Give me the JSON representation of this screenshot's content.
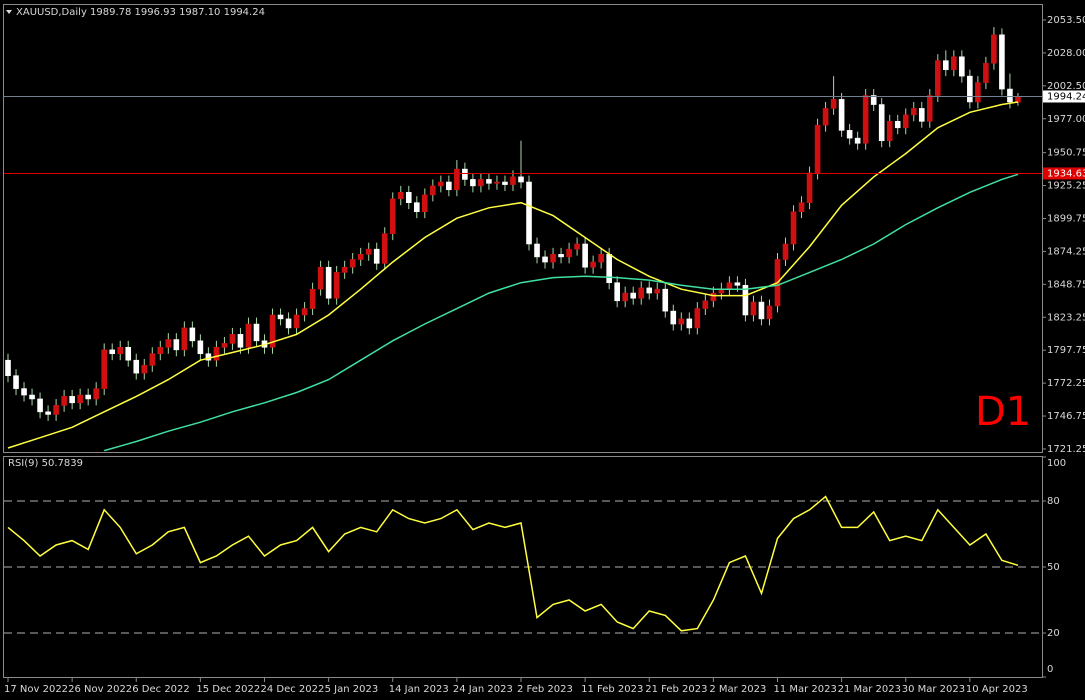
{
  "chart_data": [
    {
      "type": "candlestick",
      "title": "XAUUSD,Daily",
      "header_values": "1989.78 1996.93 1987.10 1994.24",
      "annotation": "D1",
      "open": [
        1790,
        1778,
        1768,
        1763,
        1760,
        1750,
        1748,
        1755,
        1762,
        1757,
        1763,
        1760,
        1768,
        1798,
        1795,
        1800,
        1790,
        1780,
        1786,
        1795,
        1800,
        1806,
        1798,
        1815,
        1805,
        1795,
        1790,
        1800,
        1803,
        1810,
        1800,
        1818,
        1805,
        1800,
        1825,
        1822,
        1815,
        1825,
        1830,
        1845,
        1862,
        1838,
        1858,
        1862,
        1868,
        1872,
        1876,
        1865,
        1888,
        1915,
        1920,
        1912,
        1905,
        1918,
        1925,
        1928,
        1922,
        1938,
        1930,
        1925,
        1930,
        1927,
        1928,
        1926,
        1932,
        1928,
        1880,
        1870,
        1866,
        1872,
        1870,
        1876,
        1880,
        1862,
        1866,
        1872,
        1850,
        1836,
        1842,
        1838,
        1846,
        1842,
        1845,
        1828,
        1818,
        1822,
        1815,
        1830,
        1836,
        1842,
        1845,
        1850,
        1848,
        1825,
        1835,
        1822,
        1832,
        1868,
        1880,
        1905,
        1912,
        1935,
        1972,
        1985,
        1992,
        1968,
        1962,
        1958,
        1995,
        1988,
        1960,
        1975,
        1970,
        1980,
        1985,
        1975,
        1995,
        2022,
        2015,
        2025,
        2010,
        1990,
        2005,
        2020,
        2042,
        2000,
        1989.78
      ],
      "high": [
        1795,
        1783,
        1773,
        1768,
        1765,
        1755,
        1760,
        1767,
        1767,
        1768,
        1768,
        1773,
        1803,
        1803,
        1805,
        1805,
        1795,
        1791,
        1800,
        1805,
        1811,
        1811,
        1820,
        1820,
        1810,
        1800,
        1805,
        1808,
        1815,
        1815,
        1823,
        1823,
        1810,
        1830,
        1830,
        1827,
        1830,
        1835,
        1850,
        1867,
        1867,
        1863,
        1867,
        1873,
        1877,
        1881,
        1881,
        1893,
        1920,
        1925,
        1925,
        1917,
        1923,
        1930,
        1933,
        1933,
        1945,
        1943,
        1935,
        1935,
        1935,
        1933,
        1933,
        1937,
        1960,
        1933,
        1885,
        1875,
        1877,
        1877,
        1881,
        1885,
        1885,
        1871,
        1877,
        1877,
        1855,
        1847,
        1847,
        1851,
        1851,
        1850,
        1850,
        1833,
        1827,
        1827,
        1835,
        1841,
        1847,
        1850,
        1855,
        1855,
        1853,
        1840,
        1840,
        1837,
        1873,
        1885,
        1910,
        1917,
        1940,
        1977,
        1990,
        2010,
        1997,
        1973,
        1967,
        2000,
        2000,
        1993,
        1980,
        1980,
        1985,
        1990,
        1990,
        2000,
        2027,
        2030,
        2030,
        2030,
        2015,
        2010,
        2025,
        2048,
        2047,
        2012,
        1996.93
      ],
      "low": [
        1773,
        1763,
        1758,
        1755,
        1745,
        1743,
        1743,
        1750,
        1752,
        1752,
        1755,
        1755,
        1763,
        1790,
        1790,
        1785,
        1775,
        1775,
        1781,
        1790,
        1795,
        1793,
        1793,
        1800,
        1790,
        1785,
        1785,
        1795,
        1798,
        1795,
        1795,
        1800,
        1795,
        1795,
        1817,
        1810,
        1810,
        1820,
        1825,
        1840,
        1833,
        1833,
        1853,
        1857,
        1863,
        1867,
        1860,
        1860,
        1883,
        1910,
        1907,
        1900,
        1900,
        1913,
        1920,
        1917,
        1917,
        1925,
        1920,
        1920,
        1922,
        1922,
        1921,
        1921,
        1923,
        1875,
        1865,
        1861,
        1861,
        1865,
        1865,
        1871,
        1857,
        1857,
        1861,
        1845,
        1831,
        1831,
        1833,
        1833,
        1837,
        1837,
        1823,
        1813,
        1813,
        1810,
        1810,
        1825,
        1831,
        1837,
        1840,
        1843,
        1820,
        1820,
        1817,
        1817,
        1827,
        1863,
        1875,
        1900,
        1907,
        1930,
        1967,
        1980,
        1963,
        1957,
        1953,
        1953,
        1983,
        1955,
        1955,
        1965,
        1965,
        1975,
        1970,
        1970,
        1990,
        2010,
        2010,
        2005,
        1985,
        1985,
        2000,
        2015,
        1995,
        1985,
        1987.1
      ],
      "close": [
        1778,
        1768,
        1763,
        1760,
        1750,
        1748,
        1755,
        1762,
        1757,
        1763,
        1760,
        1768,
        1798,
        1795,
        1800,
        1790,
        1780,
        1786,
        1795,
        1800,
        1806,
        1798,
        1815,
        1805,
        1795,
        1790,
        1800,
        1803,
        1810,
        1800,
        1818,
        1805,
        1800,
        1825,
        1822,
        1815,
        1825,
        1830,
        1845,
        1862,
        1838,
        1858,
        1862,
        1868,
        1872,
        1876,
        1865,
        1888,
        1915,
        1920,
        1912,
        1905,
        1918,
        1925,
        1928,
        1922,
        1938,
        1930,
        1925,
        1930,
        1927,
        1928,
        1926,
        1932,
        1928,
        1880,
        1870,
        1866,
        1872,
        1870,
        1876,
        1880,
        1862,
        1866,
        1872,
        1850,
        1836,
        1842,
        1838,
        1846,
        1842,
        1845,
        1828,
        1818,
        1822,
        1815,
        1830,
        1836,
        1842,
        1845,
        1850,
        1848,
        1825,
        1835,
        1822,
        1832,
        1868,
        1880,
        1905,
        1912,
        1935,
        1972,
        1985,
        1992,
        1968,
        1962,
        1958,
        1995,
        1988,
        1960,
        1975,
        1970,
        1980,
        1985,
        1975,
        1995,
        2022,
        2015,
        2025,
        2010,
        1990,
        2005,
        2020,
        2042,
        2000,
        1990,
        1994.24
      ],
      "colors": {
        "up": "#d01010",
        "down": "#ffffff",
        "wick": "#a8d8a8"
      },
      "lines": [
        {
          "color": "#ffff40",
          "x": [
            0,
            4,
            8,
            12,
            16,
            20,
            24,
            28,
            32,
            36,
            40,
            44,
            48,
            52,
            56,
            60,
            64,
            68,
            72,
            76,
            80,
            84,
            88,
            92,
            96,
            100,
            104,
            108,
            112,
            116,
            120,
            124,
            126
          ],
          "values": [
            1722,
            1730,
            1738,
            1750,
            1762,
            1775,
            1790,
            1796,
            1802,
            1810,
            1825,
            1845,
            1866,
            1885,
            1900,
            1908,
            1912,
            1902,
            1885,
            1868,
            1855,
            1845,
            1840,
            1840,
            1850,
            1878,
            1910,
            1932,
            1950,
            1970,
            1982,
            1988,
            1990
          ]
        },
        {
          "color": "#40e0a0",
          "x": [
            0,
            4,
            8,
            12,
            16,
            20,
            24,
            28,
            32,
            36,
            40,
            44,
            48,
            52,
            56,
            60,
            64,
            68,
            72,
            76,
            80,
            84,
            88,
            92,
            96,
            100,
            104,
            108,
            112,
            116,
            120,
            124,
            126
          ],
          "values": [
            null,
            null,
            null,
            1720,
            1727,
            1735,
            1742,
            1750,
            1757,
            1765,
            1775,
            1790,
            1805,
            1818,
            1830,
            1842,
            1850,
            1854,
            1855,
            1854,
            1852,
            1848,
            1845,
            1845,
            1848,
            1858,
            1868,
            1880,
            1895,
            1908,
            1920,
            1930,
            1934
          ]
        }
      ],
      "hline": 1934.63,
      "hline_color": "#e00000",
      "price_line_color": "#708090",
      "xlim": [
        -0.5,
        129
      ],
      "xticks": [
        {
          "value": 0,
          "label": "17 Nov 2022"
        },
        {
          "value": 8,
          "label": "26 Nov 2022"
        },
        {
          "value": 16,
          "label": "6 Dec 2022"
        },
        {
          "value": 24,
          "label": "15 Dec 2022"
        },
        {
          "value": 32,
          "label": "24 Dec 2022"
        },
        {
          "value": 40,
          "label": "5 Jan 2023"
        },
        {
          "value": 48,
          "label": "14 Jan 2023"
        },
        {
          "value": 56,
          "label": "24 Jan 2023"
        },
        {
          "value": 64,
          "label": "2 Feb 2023"
        },
        {
          "value": 72,
          "label": "11 Feb 2023"
        },
        {
          "value": 80,
          "label": "21 Feb 2023"
        },
        {
          "value": 88,
          "label": "2 Mar 2023"
        },
        {
          "value": 96,
          "label": "11 Mar 2023"
        },
        {
          "value": 104,
          "label": "21 Mar 2023"
        },
        {
          "value": 112,
          "label": "30 Mar 2023"
        },
        {
          "value": 120,
          "label": "10 Apr 2023"
        }
      ],
      "ylim": [
        1718.9,
        2065.1
      ],
      "yticks": [
        {
          "value": 1721.25,
          "label": "1721.25"
        },
        {
          "value": 1746.75,
          "label": "1746.75"
        },
        {
          "value": 1772.25,
          "label": "1772.25"
        },
        {
          "value": 1797.75,
          "label": "1797.75"
        },
        {
          "value": 1823.25,
          "label": "1823.25"
        },
        {
          "value": 1848.75,
          "label": "1848.75"
        },
        {
          "value": 1874.25,
          "label": "1874.25"
        },
        {
          "value": 1899.75,
          "label": "1899.75"
        },
        {
          "value": 1925.25,
          "label": "1925.25"
        },
        {
          "value": 1950.75,
          "label": "1950.75"
        },
        {
          "value": 1977,
          "label": "1977.00"
        },
        {
          "value": 2002.5,
          "label": "2002.50"
        },
        {
          "value": 2028,
          "label": "2028.00"
        },
        {
          "value": 2053.5,
          "label": "2053.50"
        }
      ]
    },
    {
      "type": "line",
      "title": "RSI(9) 50.7839",
      "color": "#ffff40",
      "x": [
        0,
        2,
        4,
        6,
        8,
        10,
        12,
        14,
        16,
        18,
        20,
        22,
        24,
        26,
        28,
        30,
        32,
        34,
        36,
        38,
        40,
        42,
        44,
        46,
        48,
        50,
        52,
        54,
        56,
        58,
        60,
        62,
        64,
        66,
        68,
        70,
        72,
        74,
        76,
        78,
        80,
        82,
        84,
        86,
        88,
        90,
        92,
        94,
        96,
        98,
        100,
        102,
        104,
        106,
        108,
        110,
        112,
        114,
        116,
        118,
        120,
        122,
        124,
        126
      ],
      "values": [
        68,
        62,
        55,
        60,
        62,
        58,
        76,
        68,
        56,
        60,
        66,
        68,
        52,
        55,
        60,
        64,
        55,
        60,
        62,
        68,
        57,
        65,
        68,
        66,
        76,
        72,
        70,
        72,
        76,
        67,
        70,
        68,
        70,
        27,
        33,
        35,
        30,
        33,
        25,
        22,
        30,
        28,
        21,
        22,
        35,
        52,
        55,
        38,
        63,
        72,
        76,
        82,
        68,
        68,
        75,
        62,
        64,
        62,
        76,
        68,
        60,
        65,
        53,
        50.7839
      ],
      "xlim": [
        -0.5,
        129
      ],
      "ylim": [
        0,
        100
      ],
      "yticks": [
        0,
        20,
        50,
        80,
        100
      ],
      "levels": [
        20,
        50,
        80
      ],
      "level_color": "#b0b0b0"
    }
  ]
}
